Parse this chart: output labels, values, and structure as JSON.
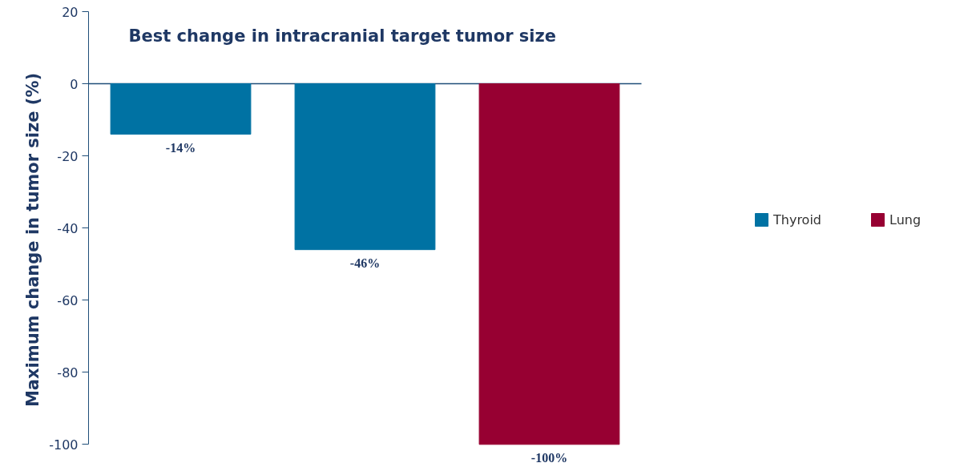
{
  "chart_data": {
    "type": "bar",
    "title": "Best change in intracranial target tumor size",
    "ylabel": "Maximum change in tumor size (%)",
    "categories": [
      null,
      null,
      null
    ],
    "series": [
      {
        "name": "Thyroid",
        "color": "#0072a3",
        "values": [
          -14,
          -46,
          null
        ],
        "value_labels": [
          "-14%",
          "-46%",
          null
        ]
      },
      {
        "name": "Lung",
        "color": "#970032",
        "values": [
          null,
          null,
          -100
        ],
        "value_labels": [
          null,
          null,
          "-100%"
        ]
      }
    ],
    "ylim": [
      -100,
      20
    ],
    "yticks": [
      -100,
      -80,
      -60,
      -40,
      -20,
      0,
      20
    ],
    "ref_lines": [
      {
        "axis": "y",
        "value": 0,
        "color": "#1f4e79"
      }
    ],
    "tick_labels": "y",
    "grid": false,
    "legend": "right"
  }
}
